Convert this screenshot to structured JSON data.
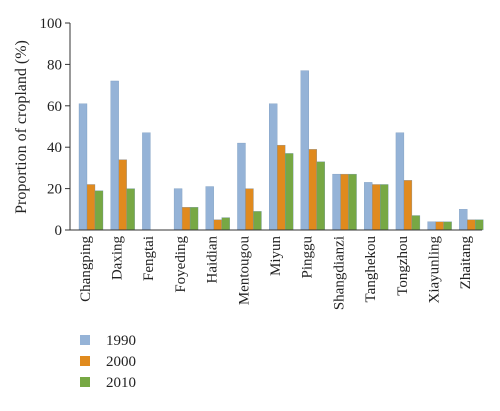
{
  "chart_data": {
    "type": "bar",
    "title": "",
    "xlabel": "",
    "ylabel": "Proportion of cropland (%)",
    "ylim": [
      0,
      100
    ],
    "yticks": [
      0,
      20,
      40,
      60,
      80,
      100
    ],
    "grid": false,
    "legend": "bottom-left",
    "categories": [
      "Changping",
      "Daxing",
      "Fengtai",
      "Foyeding",
      "Haidian",
      "Mentougou",
      "Miyun",
      "Pinggu",
      "Shangdianzi",
      "Tanghekou",
      "Tongzhou",
      "Xiayunling",
      "Zhaitang"
    ],
    "series": [
      {
        "name": "1990",
        "color": "#95b3d7",
        "values": [
          61,
          72,
          47,
          20,
          21,
          42,
          61,
          77,
          27,
          23,
          47,
          4,
          10
        ]
      },
      {
        "name": "2000",
        "color": "#e08a1e",
        "values": [
          22,
          34,
          0,
          11,
          5,
          20,
          41,
          39,
          27,
          22,
          24,
          4,
          5
        ]
      },
      {
        "name": "2010",
        "color": "#77a844",
        "values": [
          19,
          20,
          0,
          11,
          6,
          9,
          37,
          33,
          27,
          22,
          7,
          4,
          5
        ]
      }
    ]
  }
}
